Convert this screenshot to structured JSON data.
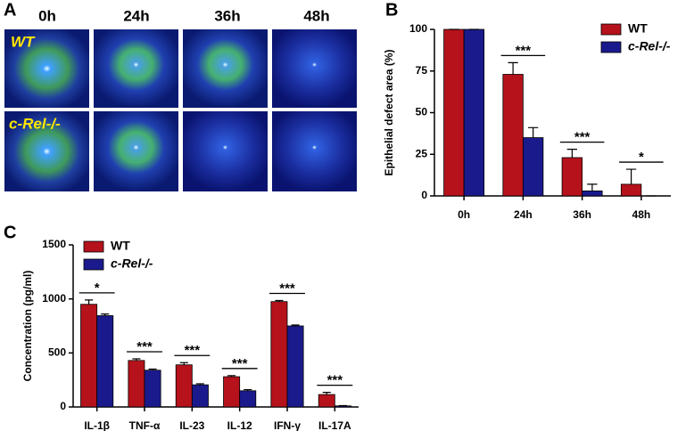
{
  "panel_labels": [
    "A",
    "B",
    "C"
  ],
  "images": {
    "columns": [
      "0h",
      "24h",
      "36h",
      "48h"
    ],
    "rows": [
      "WT",
      "c-Rel-/-"
    ]
  },
  "chart_data": [
    {
      "type": "bar",
      "ylabel": "Epithelial defect area (%)",
      "categories": [
        "0h",
        "24h",
        "36h",
        "48h"
      ],
      "series": [
        {
          "name": "WT",
          "color": "#b5121b",
          "values": [
            100,
            73,
            23,
            7
          ],
          "errors": [
            0,
            7,
            5,
            9
          ]
        },
        {
          "name": "c-Rel-/-",
          "color": "#1a1a8c",
          "values": [
            100,
            35,
            3,
            0
          ],
          "errors": [
            0,
            6,
            4,
            0
          ]
        }
      ],
      "significance": [
        null,
        "***",
        "***",
        "*"
      ],
      "ylim": [
        0,
        100
      ],
      "yticks": [
        0,
        25,
        50,
        75,
        100
      ],
      "legend": "upper right"
    },
    {
      "type": "bar",
      "ylabel": "Concentration (pg/ml)",
      "categories": [
        "IL-1β",
        "TNF-α",
        "IL-23",
        "IL-12",
        "IFN-γ",
        "IL-17A"
      ],
      "series": [
        {
          "name": "WT",
          "color": "#b5121b",
          "values": [
            950,
            430,
            390,
            280,
            975,
            115
          ],
          "errors": [
            40,
            15,
            20,
            10,
            10,
            20
          ]
        },
        {
          "name": "c-Rel-/-",
          "color": "#1a1a8c",
          "values": [
            845,
            340,
            205,
            150,
            750,
            10
          ],
          "errors": [
            15,
            10,
            10,
            10,
            8,
            3
          ]
        }
      ],
      "significance": [
        "*",
        "***",
        "***",
        "***",
        "***",
        "***"
      ],
      "ylim": [
        0,
        1500
      ],
      "yticks": [
        0,
        500,
        1000,
        1500
      ],
      "legend": "upper left"
    }
  ]
}
